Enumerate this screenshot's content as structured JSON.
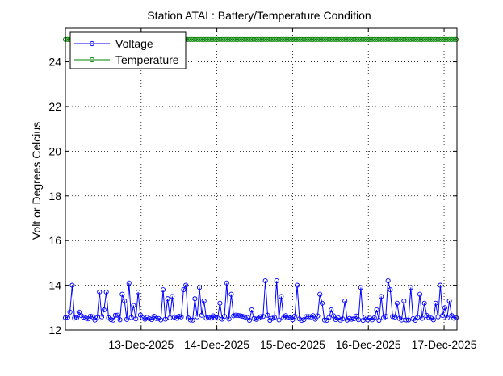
{
  "chart_data": {
    "type": "line",
    "title": "Station ATAL: Battery/Temperature Condition",
    "xlabel": "",
    "ylabel": "Volt or Degrees Celcius",
    "xlim": [
      12.0,
      17.17
    ],
    "ylim": [
      12,
      25.5
    ],
    "grid": true,
    "legend_location": "top-left",
    "xticks": [
      {
        "value": 13.0,
        "label": "13-Dec-2025"
      },
      {
        "value": 14.0,
        "label": "14-Dec-2025"
      },
      {
        "value": 15.0,
        "label": "15-Dec-2025"
      },
      {
        "value": 16.0,
        "label": "16-Dec-2025"
      },
      {
        "value": 17.0,
        "label": "17-Dec-2025"
      }
    ],
    "yticks": [
      12,
      14,
      16,
      18,
      20,
      22,
      24
    ],
    "x_start": 12.0,
    "x_step": 0.03,
    "series": [
      {
        "name": "Voltage",
        "color": "#0000ff",
        "baseline": 12.55,
        "noise": 0.12,
        "spikes": [
          [
            12.06,
            12.8
          ],
          [
            12.1,
            14.0
          ],
          [
            12.17,
            12.8
          ],
          [
            12.45,
            13.7
          ],
          [
            12.5,
            12.9
          ],
          [
            12.55,
            13.7
          ],
          [
            12.75,
            13.6
          ],
          [
            12.78,
            13.3
          ],
          [
            12.85,
            14.1
          ],
          [
            12.9,
            13.1
          ],
          [
            12.95,
            13.7
          ],
          [
            13.3,
            13.8
          ],
          [
            13.35,
            13.4
          ],
          [
            13.4,
            13.5
          ],
          [
            13.55,
            13.8
          ],
          [
            13.6,
            14.0
          ],
          [
            13.72,
            13.4
          ],
          [
            13.77,
            13.9
          ],
          [
            13.82,
            13.3
          ],
          [
            14.05,
            13.2
          ],
          [
            14.12,
            14.1
          ],
          [
            14.2,
            13.6
          ],
          [
            14.45,
            12.9
          ],
          [
            14.65,
            14.2
          ],
          [
            14.8,
            14.2
          ],
          [
            14.85,
            13.5
          ],
          [
            15.05,
            14.0
          ],
          [
            15.35,
            13.6
          ],
          [
            15.4,
            13.2
          ],
          [
            15.5,
            12.9
          ],
          [
            15.7,
            13.3
          ],
          [
            15.9,
            13.9
          ],
          [
            16.1,
            12.9
          ],
          [
            16.18,
            13.5
          ],
          [
            16.25,
            14.2
          ],
          [
            16.3,
            13.8
          ],
          [
            16.38,
            13.2
          ],
          [
            16.48,
            13.3
          ],
          [
            16.55,
            13.9
          ],
          [
            16.68,
            13.6
          ],
          [
            16.75,
            13.2
          ],
          [
            16.88,
            13.2
          ],
          [
            16.95,
            14.0
          ],
          [
            17.02,
            13.0
          ],
          [
            17.08,
            13.3
          ]
        ]
      },
      {
        "name": "Temperature",
        "color": "#008000",
        "constant": 25
      }
    ]
  }
}
